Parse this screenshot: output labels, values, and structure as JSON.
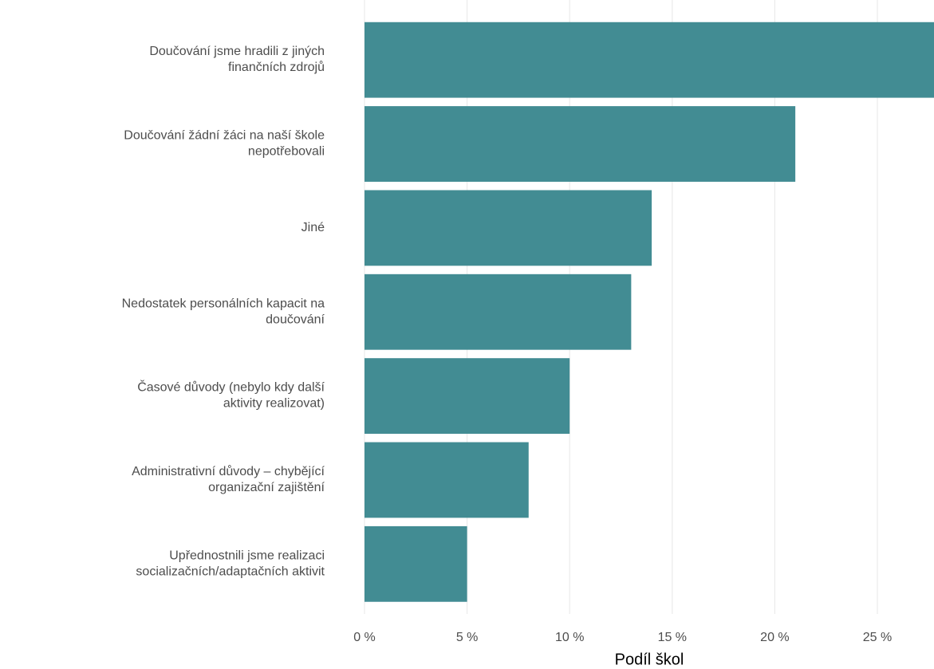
{
  "chart_data": {
    "type": "barh",
    "categories": [
      "Doučování jsme hradili z jiných\nfinančních zdrojů",
      "Doučování žádní žáci na naší škole\nnepotřebovali",
      "Jiné",
      "Nedostatek personálních kapacit na\ndoučování",
      "Časové důvody (nebylo kdy další\naktivity realizovat)",
      "Administrativní důvody – chybějící\norganizační zajištění",
      "Upřednostnili jsme realizaci\nsocializačních/adaptačních aktivit"
    ],
    "values": [
      28,
      21,
      14,
      13,
      10,
      8,
      5
    ],
    "color": "#428c93",
    "xlabel": "Podíl škol",
    "xlim": [
      0,
      27.76
    ],
    "xticks": [
      {
        "value": 0,
        "label": "0 %"
      },
      {
        "value": 5,
        "label": "5 %"
      },
      {
        "value": 10,
        "label": "10 %"
      },
      {
        "value": 15,
        "label": "15 %"
      },
      {
        "value": 20,
        "label": "20 %"
      },
      {
        "value": 25,
        "label": "25 %"
      }
    ],
    "grid": true
  }
}
